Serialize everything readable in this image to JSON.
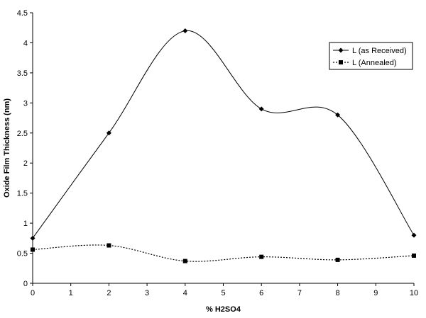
{
  "chart_data": {
    "type": "line",
    "title": "",
    "xlabel": "% H2SO4",
    "ylabel": "Oxide Film Thickness (nm)",
    "xlim": [
      0,
      10
    ],
    "ylim": [
      0,
      4.5
    ],
    "xticks": [
      "0",
      "1",
      "2",
      "3",
      "4",
      "5",
      "6",
      "7",
      "8",
      "9",
      "10"
    ],
    "yticks": [
      "0",
      "0.5",
      "1",
      "1.5",
      "2",
      "2.5",
      "3",
      "3.5",
      "4",
      "4.5"
    ],
    "grid": false,
    "legend_position": "top-right",
    "series": [
      {
        "name": "L (as Received)",
        "marker": "diamond",
        "line_style": "solid",
        "smooth": true,
        "color": "#000000",
        "x": [
          0,
          2,
          4,
          6,
          8,
          10
        ],
        "y": [
          0.75,
          2.5,
          4.2,
          2.9,
          2.8,
          0.8
        ]
      },
      {
        "name": "L (Annealed)",
        "marker": "square",
        "line_style": "dotted",
        "smooth": true,
        "color": "#000000",
        "x": [
          0,
          2,
          4,
          6,
          8,
          10
        ],
        "y": [
          0.56,
          0.63,
          0.37,
          0.44,
          0.39,
          0.46
        ]
      }
    ]
  }
}
